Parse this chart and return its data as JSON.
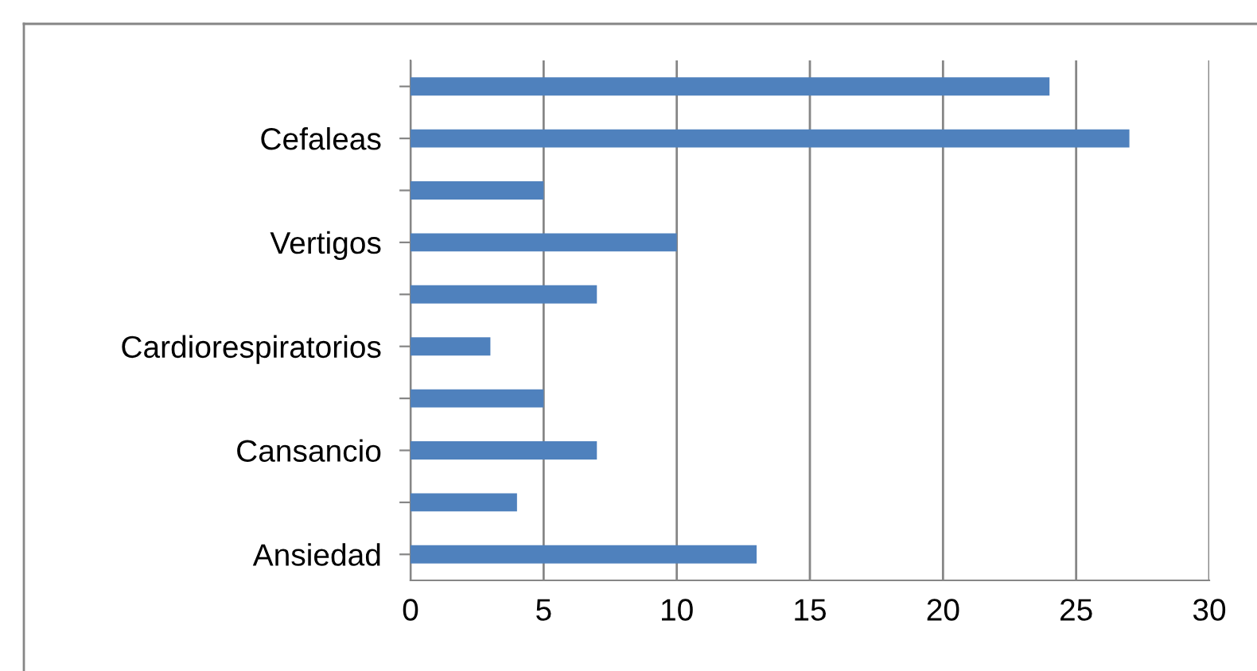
{
  "chart_data": {
    "type": "bar",
    "orientation": "horizontal",
    "categories": [
      null,
      "Cefaleas",
      null,
      "Vertigos",
      null,
      "Cardiorespiratorios",
      null,
      "Cansancio",
      null,
      "Ansiedad"
    ],
    "values": [
      24,
      27,
      5,
      10,
      7,
      3,
      5,
      7,
      4,
      13
    ],
    "color": "#4f81bd",
    "xlim": [
      0,
      30
    ],
    "xticks": [
      0,
      5,
      10,
      15,
      20,
      25,
      30
    ],
    "grid": "x",
    "legend": false
  }
}
